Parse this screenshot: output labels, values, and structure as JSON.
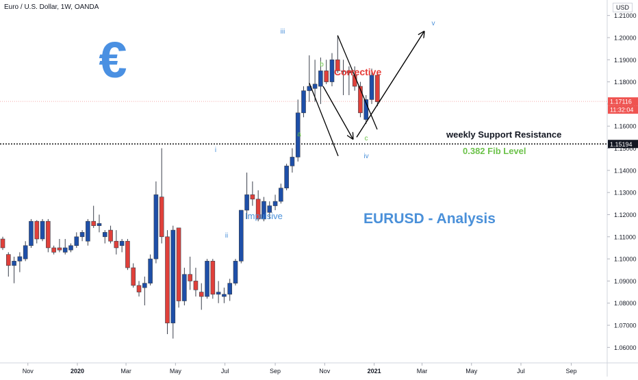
{
  "header": {
    "symbol_title": "Euro / U.S. Dollar, 1W, OANDA",
    "currency": "USD"
  },
  "price_labels": {
    "last_price": "1.17116",
    "countdown": "11:32:04",
    "level_price": "1.15194"
  },
  "annotations": {
    "euro_symbol": "€",
    "corrective": "Corrective",
    "support_resistance": "weekly Support Resistance",
    "fib_level": "0.382 Fib Level",
    "impulsive": "Impulsive",
    "analysis": "EURUSD - Analysis",
    "wave_i": "i",
    "wave_ii": "ii",
    "wave_iii": "iii",
    "wave_iv": "iv",
    "wave_v": "v",
    "wave_a": "a",
    "wave_b": "b",
    "wave_c": "c"
  },
  "colors": {
    "bull": "#1e4fa8",
    "bear": "#e0403a",
    "wick": "#3a3f4b",
    "blue_text": "#4a90d9",
    "green_text": "#6cc24a",
    "red_text": "#e53935",
    "euro": "#4a90e2",
    "dotted_line": "#111111",
    "last_price_line": "#f4a9a6"
  },
  "chart_data": {
    "type": "candlestick",
    "title": "Euro / U.S. Dollar, 1W, OANDA",
    "ylim": [
      1.053,
      1.217
    ],
    "y_ticks": [
      1.06,
      1.07,
      1.08,
      1.09,
      1.1,
      1.11,
      1.12,
      1.13,
      1.14,
      1.15,
      1.16,
      1.17,
      1.18,
      1.19,
      1.2,
      1.21
    ],
    "x_ticks": [
      {
        "label": "Nov",
        "date": "2019-11-01"
      },
      {
        "label": "2020",
        "date": "2020-01-01"
      },
      {
        "label": "Mar",
        "date": "2020-03-01"
      },
      {
        "label": "May",
        "date": "2020-05-01"
      },
      {
        "label": "Jul",
        "date": "2020-07-01"
      },
      {
        "label": "Sep",
        "date": "2020-09-01"
      },
      {
        "label": "Nov",
        "date": "2020-11-01"
      },
      {
        "label": "2021",
        "date": "2021-01-01"
      },
      {
        "label": "Mar",
        "date": "2021-03-01"
      },
      {
        "label": "May",
        "date": "2021-05-01"
      },
      {
        "label": "Jul",
        "date": "2021-07-01"
      },
      {
        "label": "Sep",
        "date": "2021-09-01"
      }
    ],
    "candles": [
      {
        "date": "2019-10-01",
        "o": 1.109,
        "h": 1.11,
        "l": 1.104,
        "c": 1.105
      },
      {
        "date": "2019-10-08",
        "o": 1.102,
        "h": 1.103,
        "l": 1.092,
        "c": 1.097
      },
      {
        "date": "2019-10-15",
        "o": 1.097,
        "h": 1.101,
        "l": 1.089,
        "c": 1.099
      },
      {
        "date": "2019-10-22",
        "o": 1.099,
        "h": 1.103,
        "l": 1.094,
        "c": 1.101
      },
      {
        "date": "2019-10-29",
        "o": 1.1,
        "h": 1.108,
        "l": 1.099,
        "c": 1.106
      },
      {
        "date": "2019-11-05",
        "o": 1.106,
        "h": 1.118,
        "l": 1.105,
        "c": 1.117
      },
      {
        "date": "2019-11-12",
        "o": 1.117,
        "h": 1.1175,
        "l": 1.107,
        "c": 1.109
      },
      {
        "date": "2019-11-19",
        "o": 1.109,
        "h": 1.118,
        "l": 1.108,
        "c": 1.117
      },
      {
        "date": "2019-11-26",
        "o": 1.117,
        "h": 1.118,
        "l": 1.103,
        "c": 1.105
      },
      {
        "date": "2019-12-03",
        "o": 1.105,
        "h": 1.106,
        "l": 1.102,
        "c": 1.103
      },
      {
        "date": "2019-12-10",
        "o": 1.105,
        "h": 1.109,
        "l": 1.103,
        "c": 1.104
      },
      {
        "date": "2019-12-17",
        "o": 1.103,
        "h": 1.109,
        "l": 1.102,
        "c": 1.105
      },
      {
        "date": "2019-12-24",
        "o": 1.104,
        "h": 1.107,
        "l": 1.103,
        "c": 1.106
      },
      {
        "date": "2019-12-31",
        "o": 1.106,
        "h": 1.112,
        "l": 1.105,
        "c": 1.11
      },
      {
        "date": "2020-01-07",
        "o": 1.11,
        "h": 1.113,
        "l": 1.108,
        "c": 1.112
      },
      {
        "date": "2020-01-14",
        "o": 1.108,
        "h": 1.118,
        "l": 1.106,
        "c": 1.117
      },
      {
        "date": "2020-01-21",
        "o": 1.117,
        "h": 1.124,
        "l": 1.114,
        "c": 1.115
      },
      {
        "date": "2020-01-28",
        "o": 1.115,
        "h": 1.12,
        "l": 1.112,
        "c": 1.116
      },
      {
        "date": "2020-02-04",
        "o": 1.11,
        "h": 1.113,
        "l": 1.107,
        "c": 1.112
      },
      {
        "date": "2020-02-11",
        "o": 1.113,
        "h": 1.115,
        "l": 1.107,
        "c": 1.108
      },
      {
        "date": "2020-02-18",
        "o": 1.108,
        "h": 1.113,
        "l": 1.102,
        "c": 1.105
      },
      {
        "date": "2020-02-25",
        "o": 1.106,
        "h": 1.109,
        "l": 1.103,
        "c": 1.108
      },
      {
        "date": "2020-03-03",
        "o": 1.108,
        "h": 1.109,
        "l": 1.095,
        "c": 1.096
      },
      {
        "date": "2020-03-10",
        "o": 1.096,
        "h": 1.098,
        "l": 1.087,
        "c": 1.088
      },
      {
        "date": "2020-03-17",
        "o": 1.088,
        "h": 1.09,
        "l": 1.083,
        "c": 1.085
      },
      {
        "date": "2020-03-24",
        "o": 1.087,
        "h": 1.092,
        "l": 1.079,
        "c": 1.089
      },
      {
        "date": "2020-03-31",
        "o": 1.089,
        "h": 1.102,
        "l": 1.088,
        "c": 1.1
      },
      {
        "date": "2020-04-07",
        "o": 1.1,
        "h": 1.135,
        "l": 1.098,
        "c": 1.129
      },
      {
        "date": "2020-04-14",
        "o": 1.128,
        "h": 1.15,
        "l": 1.107,
        "c": 1.11
      },
      {
        "date": "2020-04-21",
        "o": 1.11,
        "h": 1.113,
        "l": 1.066,
        "c": 1.071
      },
      {
        "date": "2020-04-28",
        "o": 1.071,
        "h": 1.115,
        "l": 1.064,
        "c": 1.113
      },
      {
        "date": "2020-05-05",
        "o": 1.114,
        "h": 1.114,
        "l": 1.078,
        "c": 1.081
      },
      {
        "date": "2020-05-12",
        "o": 1.081,
        "h": 1.096,
        "l": 1.079,
        "c": 1.093
      },
      {
        "date": "2020-05-19",
        "o": 1.093,
        "h": 1.101,
        "l": 1.086,
        "c": 1.09
      },
      {
        "date": "2020-05-26",
        "o": 1.09,
        "h": 1.096,
        "l": 1.083,
        "c": 1.086
      },
      {
        "date": "2020-06-02",
        "o": 1.085,
        "h": 1.089,
        "l": 1.077,
        "c": 1.083
      },
      {
        "date": "2020-06-09",
        "o": 1.083,
        "h": 1.1,
        "l": 1.082,
        "c": 1.099
      },
      {
        "date": "2020-06-16",
        "o": 1.099,
        "h": 1.1,
        "l": 1.082,
        "c": 1.084
      },
      {
        "date": "2020-06-23",
        "o": 1.084,
        "h": 1.09,
        "l": 1.08,
        "c": 1.085
      },
      {
        "date": "2020-06-30",
        "o": 1.083,
        "h": 1.087,
        "l": 1.08,
        "c": 1.084
      },
      {
        "date": "2020-07-07",
        "o": 1.084,
        "h": 1.091,
        "l": 1.081,
        "c": 1.089
      },
      {
        "date": "2020-07-14",
        "o": 1.089,
        "h": 1.1,
        "l": 1.088,
        "c": 1.099
      },
      {
        "date": "2020-07-21",
        "o": 1.099,
        "h": 1.122,
        "l": 1.098,
        "c": 1.122
      },
      {
        "date": "2020-07-28",
        "o": 1.122,
        "h": 1.139,
        "l": 1.118,
        "c": 1.129
      },
      {
        "date": "2020-08-04",
        "o": 1.129,
        "h": 1.135,
        "l": 1.124,
        "c": 1.127
      },
      {
        "date": "2020-08-11",
        "o": 1.127,
        "h": 1.131,
        "l": 1.117,
        "c": 1.118
      },
      {
        "date": "2020-08-18",
        "o": 1.118,
        "h": 1.128,
        "l": 1.117,
        "c": 1.126
      },
      {
        "date": "2020-08-25",
        "o": 1.121,
        "h": 1.126,
        "l": 1.118,
        "c": 1.124
      },
      {
        "date": "2020-09-01",
        "o": 1.124,
        "h": 1.129,
        "l": 1.122,
        "c": 1.126
      },
      {
        "date": "2020-09-08",
        "o": 1.126,
        "h": 1.134,
        "l": 1.125,
        "c": 1.132
      },
      {
        "date": "2020-09-15",
        "o": 1.132,
        "h": 1.143,
        "l": 1.131,
        "c": 1.142
      },
      {
        "date": "2020-09-22",
        "o": 1.142,
        "h": 1.15,
        "l": 1.139,
        "c": 1.146
      },
      {
        "date": "2020-09-29",
        "o": 1.146,
        "h": 1.172,
        "l": 1.144,
        "c": 1.166
      },
      {
        "date": "2020-10-06",
        "o": 1.166,
        "h": 1.178,
        "l": 1.164,
        "c": 1.176
      },
      {
        "date": "2020-10-13",
        "o": 1.176,
        "h": 1.192,
        "l": 1.171,
        "c": 1.178
      },
      {
        "date": "2020-10-20",
        "o": 1.177,
        "h": 1.19,
        "l": 1.171,
        "c": 1.179
      },
      {
        "date": "2020-10-27",
        "o": 1.178,
        "h": 1.191,
        "l": 1.17,
        "c": 1.185
      },
      {
        "date": "2020-11-03",
        "o": 1.185,
        "h": 1.19,
        "l": 1.179,
        "c": 1.18
      },
      {
        "date": "2020-11-10",
        "o": 1.18,
        "h": 1.193,
        "l": 1.178,
        "c": 1.19
      },
      {
        "date": "2020-11-17",
        "o": 1.19,
        "h": 1.201,
        "l": 1.184,
        "c": 1.185
      },
      {
        "date": "2020-11-24",
        "o": 1.185,
        "h": 1.19,
        "l": 1.174,
        "c": 1.185
      },
      {
        "date": "2020-12-01",
        "o": 1.185,
        "h": 1.187,
        "l": 1.174,
        "c": 1.184
      },
      {
        "date": "2020-12-08",
        "o": 1.183,
        "h": 1.187,
        "l": 1.176,
        "c": 1.178
      },
      {
        "date": "2020-12-15",
        "o": 1.178,
        "h": 1.18,
        "l": 1.164,
        "c": 1.166
      },
      {
        "date": "2020-12-22",
        "o": 1.163,
        "h": 1.174,
        "l": 1.161,
        "c": 1.172
      },
      {
        "date": "2020-12-29",
        "o": 1.172,
        "h": 1.186,
        "l": 1.17,
        "c": 1.183
      },
      {
        "date": "2021-01-05",
        "o": 1.183,
        "h": 1.184,
        "l": 1.169,
        "c": 1.171
      }
    ]
  }
}
